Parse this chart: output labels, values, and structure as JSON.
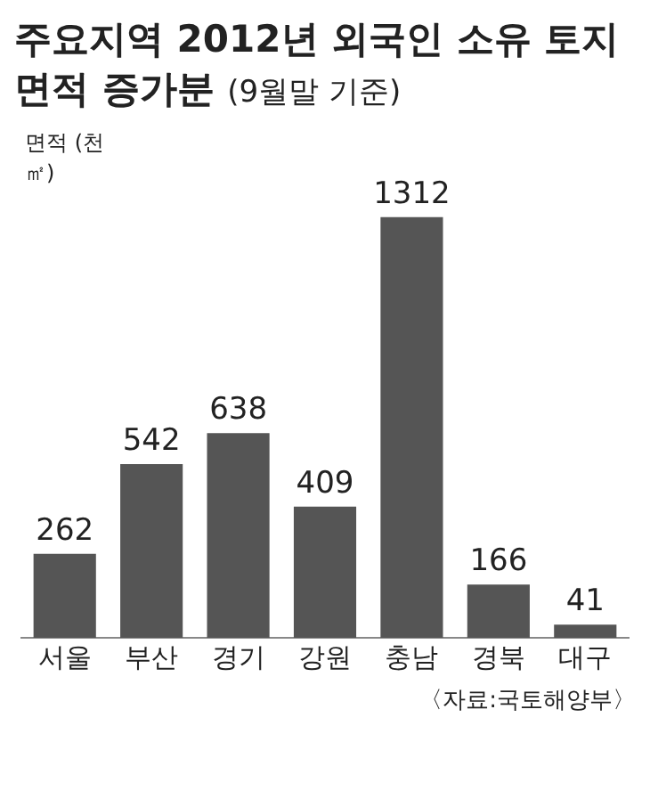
{
  "chart_data": {
    "type": "bar",
    "title": "주요지역 2012년 외국인 소유 토지 면적 증가분",
    "subtitle": "(9월말 기준)",
    "ylabel": "면적 (천㎡)",
    "categories": [
      "서울",
      "부산",
      "경기",
      "강원",
      "충남",
      "경북",
      "대구"
    ],
    "values": [
      262,
      542,
      638,
      409,
      1312,
      166,
      41
    ],
    "color": "#555555",
    "data_labels": true,
    "grid": false,
    "annotations": [
      "〈자료:국토해양부〉"
    ]
  }
}
